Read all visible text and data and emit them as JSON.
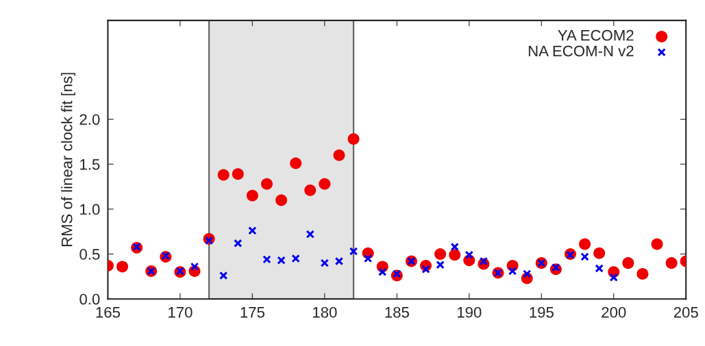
{
  "chart_data": {
    "type": "scatter",
    "ylabel": "RMS of linear clock fit [ns]",
    "xlim": [
      165,
      205
    ],
    "xticks": [
      165,
      170,
      175,
      180,
      185,
      190,
      195,
      200,
      205
    ],
    "ylim": [
      0,
      3.1
    ],
    "yticks": [
      {
        "value": 0,
        "label": "0.0"
      },
      {
        "value": 0.5,
        "label": "0.5"
      },
      {
        "value": 1,
        "label": "1.0"
      },
      {
        "value": 1.5,
        "label": "1.5"
      },
      {
        "value": 2,
        "label": "2.0"
      }
    ],
    "grid": false,
    "legend": "top right",
    "bands": [
      {
        "axis": "x",
        "from": 172,
        "to": 182,
        "color": "#e4e4e4"
      }
    ],
    "series": [
      {
        "name": "YA ECOM2",
        "color": "#ee0000",
        "marker": "circle",
        "x": [
          165,
          166,
          167,
          168,
          169,
          170,
          171,
          172,
          173,
          174,
          175,
          176,
          177,
          178,
          179,
          180,
          181,
          182,
          183,
          184,
          185,
          186,
          187,
          188,
          189,
          190,
          191,
          192,
          193,
          194,
          195,
          196,
          197,
          198,
          199,
          200,
          201,
          202,
          203,
          204,
          205
        ],
        "values": [
          0.37,
          0.36,
          0.57,
          0.31,
          0.47,
          0.3,
          0.31,
          0.67,
          1.38,
          1.39,
          1.15,
          1.28,
          1.1,
          1.51,
          1.21,
          1.28,
          1.6,
          1.78,
          0.51,
          0.36,
          0.26,
          0.42,
          0.37,
          0.5,
          0.49,
          0.43,
          0.39,
          0.29,
          0.37,
          0.23,
          0.4,
          0.33,
          0.5,
          0.61,
          0.51,
          0.3,
          0.4,
          0.28,
          0.61,
          0.4,
          0.42
        ]
      },
      {
        "name": "NA ECOM-N v2",
        "color": "#0000ee",
        "marker": "cross",
        "x": [
          167,
          168,
          169,
          170,
          171,
          172,
          173,
          174,
          175,
          176,
          177,
          178,
          179,
          180,
          181,
          182,
          183,
          184,
          185,
          186,
          187,
          188,
          189,
          190,
          191,
          192,
          193,
          194,
          195,
          196,
          197,
          198,
          199,
          200
        ],
        "values": [
          0.58,
          0.31,
          0.48,
          0.31,
          0.36,
          0.65,
          0.26,
          0.62,
          0.76,
          0.44,
          0.43,
          0.45,
          0.72,
          0.4,
          0.42,
          0.53,
          0.45,
          0.3,
          0.28,
          0.42,
          0.33,
          0.38,
          0.58,
          0.49,
          0.42,
          0.29,
          0.31,
          0.28,
          0.4,
          0.35,
          0.49,
          0.47,
          0.34,
          0.24
        ]
      }
    ]
  }
}
